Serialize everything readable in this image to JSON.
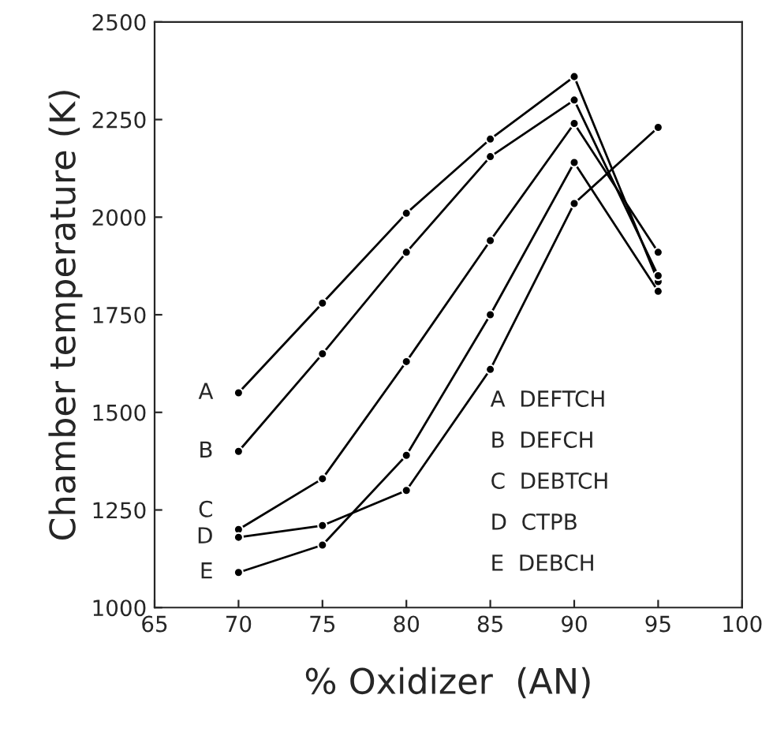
{
  "chart_data": {
    "type": "line",
    "xlabel": "% Oxidizer  (AN)",
    "ylabel": "Chamber temperature (K)",
    "x": [
      70,
      75,
      80,
      85,
      90,
      95
    ],
    "series": [
      {
        "name": "A",
        "color": "#000000",
        "values": [
          1550,
          1780,
          2010,
          2200,
          2360,
          1835
        ]
      },
      {
        "name": "B",
        "color": "#000000",
        "values": [
          1400,
          1650,
          1910,
          2155,
          2300,
          1850
        ]
      },
      {
        "name": "C",
        "color": "#000000",
        "values": [
          1200,
          1330,
          1630,
          1940,
          2240,
          1910
        ]
      },
      {
        "name": "D",
        "color": "#000000",
        "values": [
          1180,
          1210,
          1300,
          1610,
          2035,
          2230
        ]
      },
      {
        "name": "E",
        "color": "#000000",
        "values": [
          1090,
          1160,
          1390,
          1750,
          2140,
          1810
        ]
      }
    ],
    "annotations": [
      "A  DEFTCH",
      "B  DEFCH",
      "C  DEBTCH",
      "D  CTPB",
      "E  DEBCH"
    ],
    "xlim": [
      65,
      100
    ],
    "xticks": [
      65,
      70,
      75,
      80,
      85,
      90,
      95,
      100
    ],
    "ylim": [
      1000,
      2500
    ],
    "yticks": [
      1000,
      1250,
      1500,
      1750,
      2000,
      2250,
      2500
    ],
    "grid": false,
    "legend": false,
    "marker": "circle",
    "line_style": "solid"
  }
}
